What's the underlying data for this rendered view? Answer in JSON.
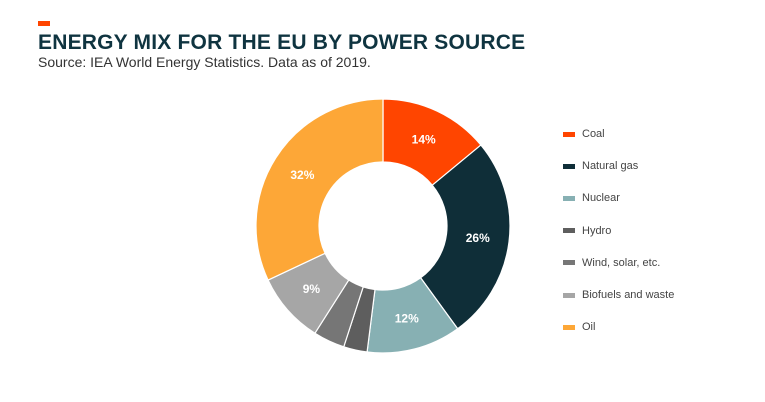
{
  "header": {
    "title": "ENERGY MIX FOR THE EU BY POWER SOURCE",
    "subtitle": "Source: IEA World Energy Statistics. Data as of 2019.",
    "accent_color": "#ff4500"
  },
  "chart_data": {
    "type": "pie",
    "variant": "donut",
    "title": "ENERGY MIX FOR THE EU BY POWER SOURCE",
    "subtitle": "Source: IEA World Energy Statistics. Data as of 2019.",
    "legend_position": "right",
    "slices": [
      {
        "name": "Coal",
        "value": 14,
        "label": "14%",
        "color": "#ff4500"
      },
      {
        "name": "Natural gas",
        "value": 26,
        "label": "26%",
        "color": "#0f2e38"
      },
      {
        "name": "Nuclear",
        "value": 12,
        "label": "12%",
        "color": "#87b0b3"
      },
      {
        "name": "Hydro",
        "value": 3,
        "label": "",
        "color": "#5e5e5e"
      },
      {
        "name": "Wind, solar, etc.",
        "value": 4,
        "label": "",
        "color": "#767676"
      },
      {
        "name": "Biofuels and waste",
        "value": 9,
        "label": "9%",
        "color": "#a6a6a6"
      },
      {
        "name": "Oil",
        "value": 32,
        "label": "32%",
        "color": "#fda737"
      }
    ]
  }
}
